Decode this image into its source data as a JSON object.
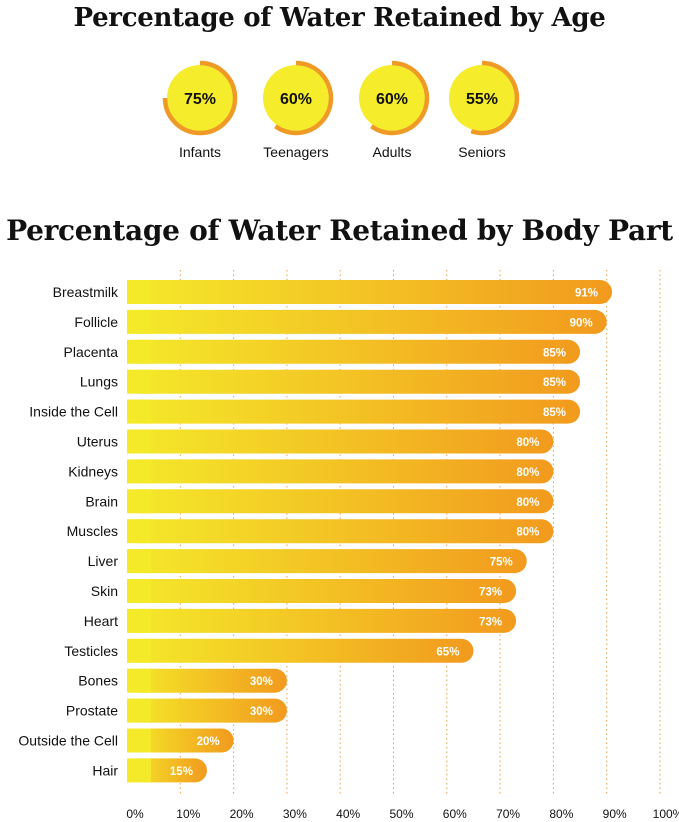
{
  "age_section": {
    "title": "Percentage of Water Retained by Age",
    "items": [
      {
        "label": "Infants",
        "value": 75,
        "display": "75%"
      },
      {
        "label": "Teenagers",
        "value": 60,
        "display": "60%"
      },
      {
        "label": "Adults",
        "value": 60,
        "display": "60%"
      },
      {
        "label": "Seniors",
        "value": 55,
        "display": "55%"
      }
    ]
  },
  "colors": {
    "bar_start": "#f4ea2a",
    "bar_end": "#f29a1e",
    "circle_fill": "#f5ec2c",
    "circle_ring": "#ef9a27",
    "grid": "#e3a24a",
    "value_text": "#ffffff",
    "text": "#111111"
  },
  "chart_data": [
    {
      "type": "pie",
      "title": "Percentage of Water Retained by Age",
      "categories": [
        "Infants",
        "Teenagers",
        "Adults",
        "Seniors"
      ],
      "values": [
        75,
        60,
        60,
        55
      ]
    },
    {
      "type": "bar",
      "orientation": "horizontal",
      "title": "Percentage of Water Retained by Body Part",
      "categories": [
        "Breastmilk",
        "Follicle",
        "Placenta",
        "Lungs",
        "Inside the Cell",
        "Uterus",
        "Kidneys",
        "Brain",
        "Muscles",
        "Liver",
        "Skin",
        "Heart",
        "Testicles",
        "Bones",
        "Prostate",
        "Outside the Cell",
        "Hair"
      ],
      "values": [
        91,
        90,
        85,
        85,
        85,
        80,
        80,
        80,
        80,
        75,
        73,
        73,
        65,
        30,
        30,
        20,
        15
      ],
      "value_labels": [
        "91%",
        "90%",
        "85%",
        "85%",
        "85%",
        "80%",
        "80%",
        "80%",
        "80%",
        "75%",
        "73%",
        "73%",
        "65%",
        "30%",
        "30%",
        "20%",
        "15%"
      ],
      "xlim": [
        0,
        100
      ],
      "x_ticks": [
        "0%",
        "10%",
        "20%",
        "30%",
        "40%",
        "50%",
        "60%",
        "70%",
        "80%",
        "90%",
        "100%"
      ],
      "grid": "vertical dotted",
      "xlabel": "",
      "ylabel": ""
    }
  ]
}
